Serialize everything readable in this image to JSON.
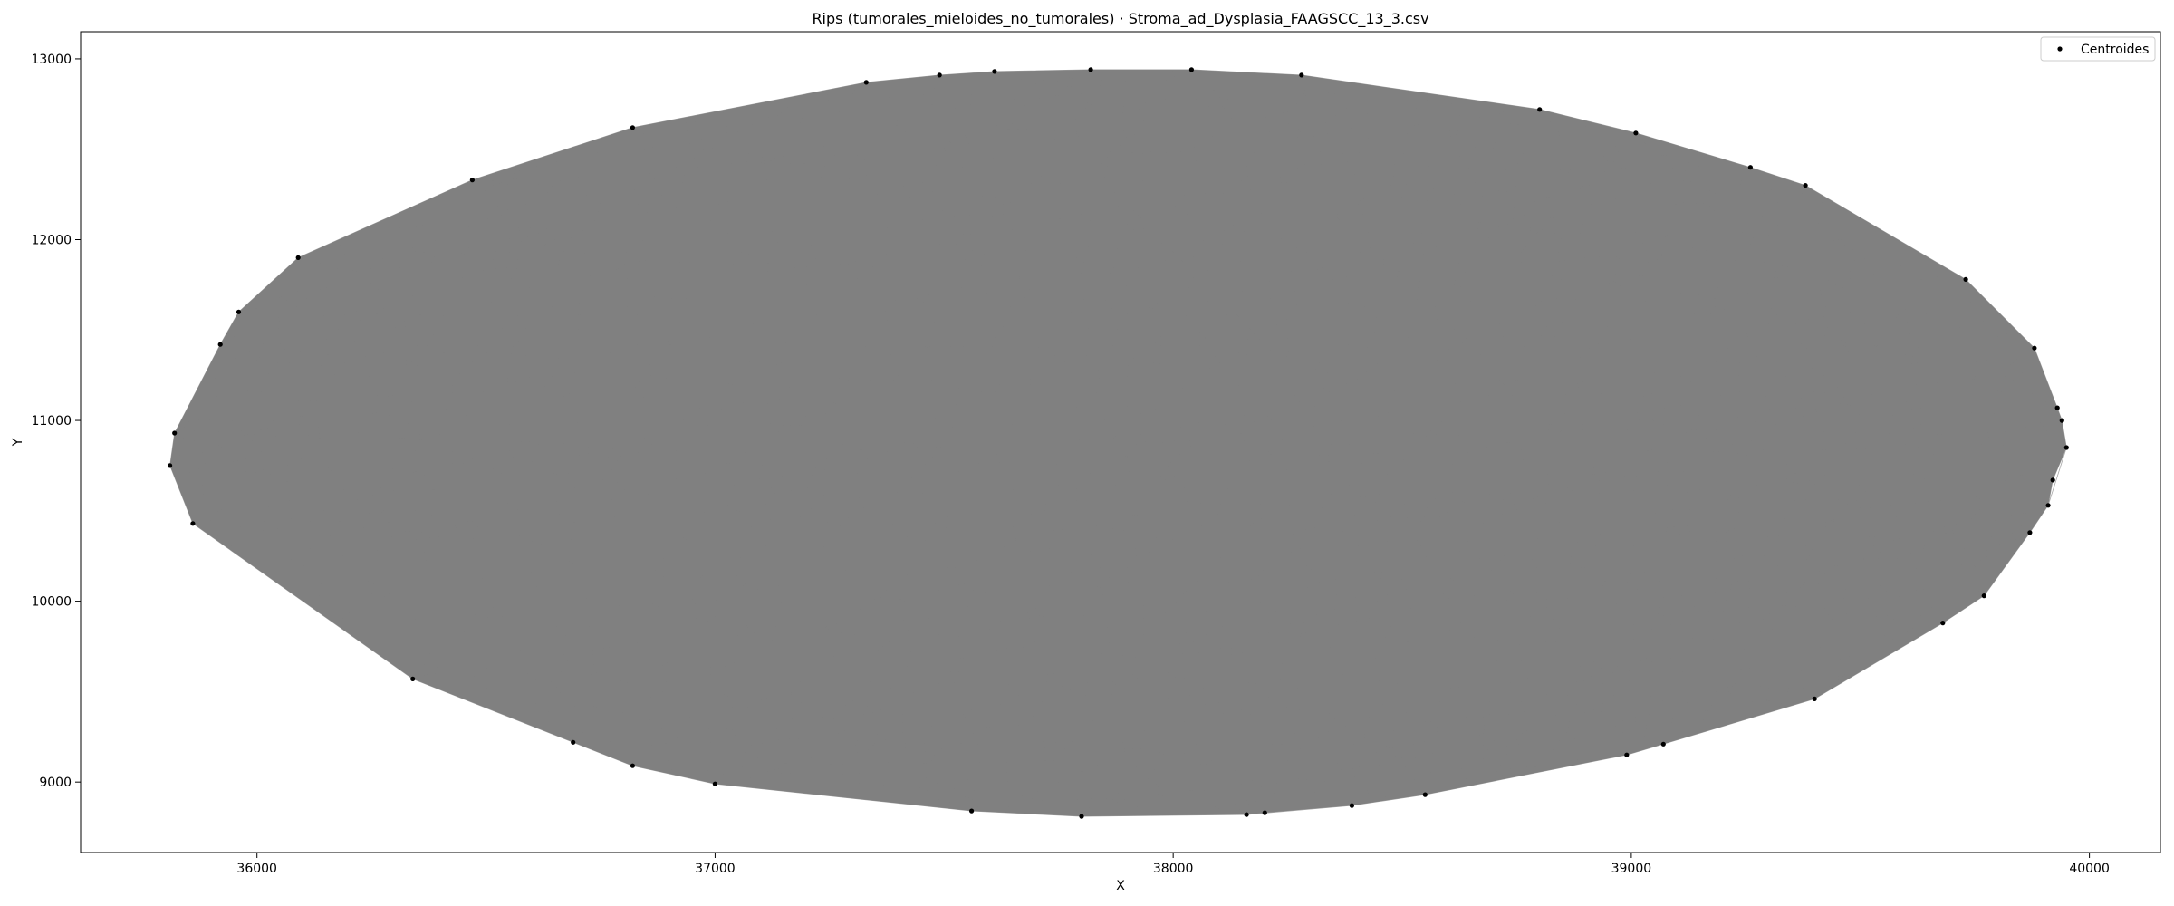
{
  "chart_data": {
    "type": "scatter",
    "title": "Rips (tumorales_mieloides_no_tumorales) · Stroma_ad_Dysplasia_FAAGSCC_13_3.csv",
    "xlabel": "X",
    "ylabel": "Y",
    "xlim": [
      35615,
      40155
    ],
    "ylim": [
      8610,
      13150
    ],
    "xticks": [
      36000,
      37000,
      38000,
      39000,
      40000
    ],
    "yticks": [
      9000,
      10000,
      11000,
      12000,
      13000
    ],
    "grid": false,
    "legend": {
      "position": "top-right",
      "entries": [
        "Centroides"
      ]
    },
    "colors": {
      "edges": "#808080",
      "points": "#000000",
      "fill": "#808080"
    },
    "series": [
      {
        "name": "Centroides",
        "points": [
          [
            35810,
            10750
          ],
          [
            35820,
            10930
          ],
          [
            35860,
            10430
          ],
          [
            35920,
            11420
          ],
          [
            35960,
            11600
          ],
          [
            36090,
            11900
          ],
          [
            36340,
            9570
          ],
          [
            36470,
            12330
          ],
          [
            36690,
            9220
          ],
          [
            36820,
            9090
          ],
          [
            36820,
            12620
          ],
          [
            37000,
            8990
          ],
          [
            37330,
            12870
          ],
          [
            37490,
            12910
          ],
          [
            37560,
            8840
          ],
          [
            37610,
            12930
          ],
          [
            37800,
            8810
          ],
          [
            37820,
            12940
          ],
          [
            38040,
            12940
          ],
          [
            38160,
            8820
          ],
          [
            38200,
            8830
          ],
          [
            38280,
            12910
          ],
          [
            38390,
            8870
          ],
          [
            38550,
            8930
          ],
          [
            38800,
            12720
          ],
          [
            38990,
            9150
          ],
          [
            39010,
            12590
          ],
          [
            39070,
            9210
          ],
          [
            39260,
            12400
          ],
          [
            39400,
            9460
          ],
          [
            39380,
            12300
          ],
          [
            39680,
            9880
          ],
          [
            39730,
            11780
          ],
          [
            39770,
            10030
          ],
          [
            39870,
            10380
          ],
          [
            39880,
            11400
          ],
          [
            39910,
            10530
          ],
          [
            39920,
            10670
          ],
          [
            39930,
            11070
          ],
          [
            39940,
            11000
          ],
          [
            39950,
            10850
          ]
        ]
      }
    ]
  }
}
